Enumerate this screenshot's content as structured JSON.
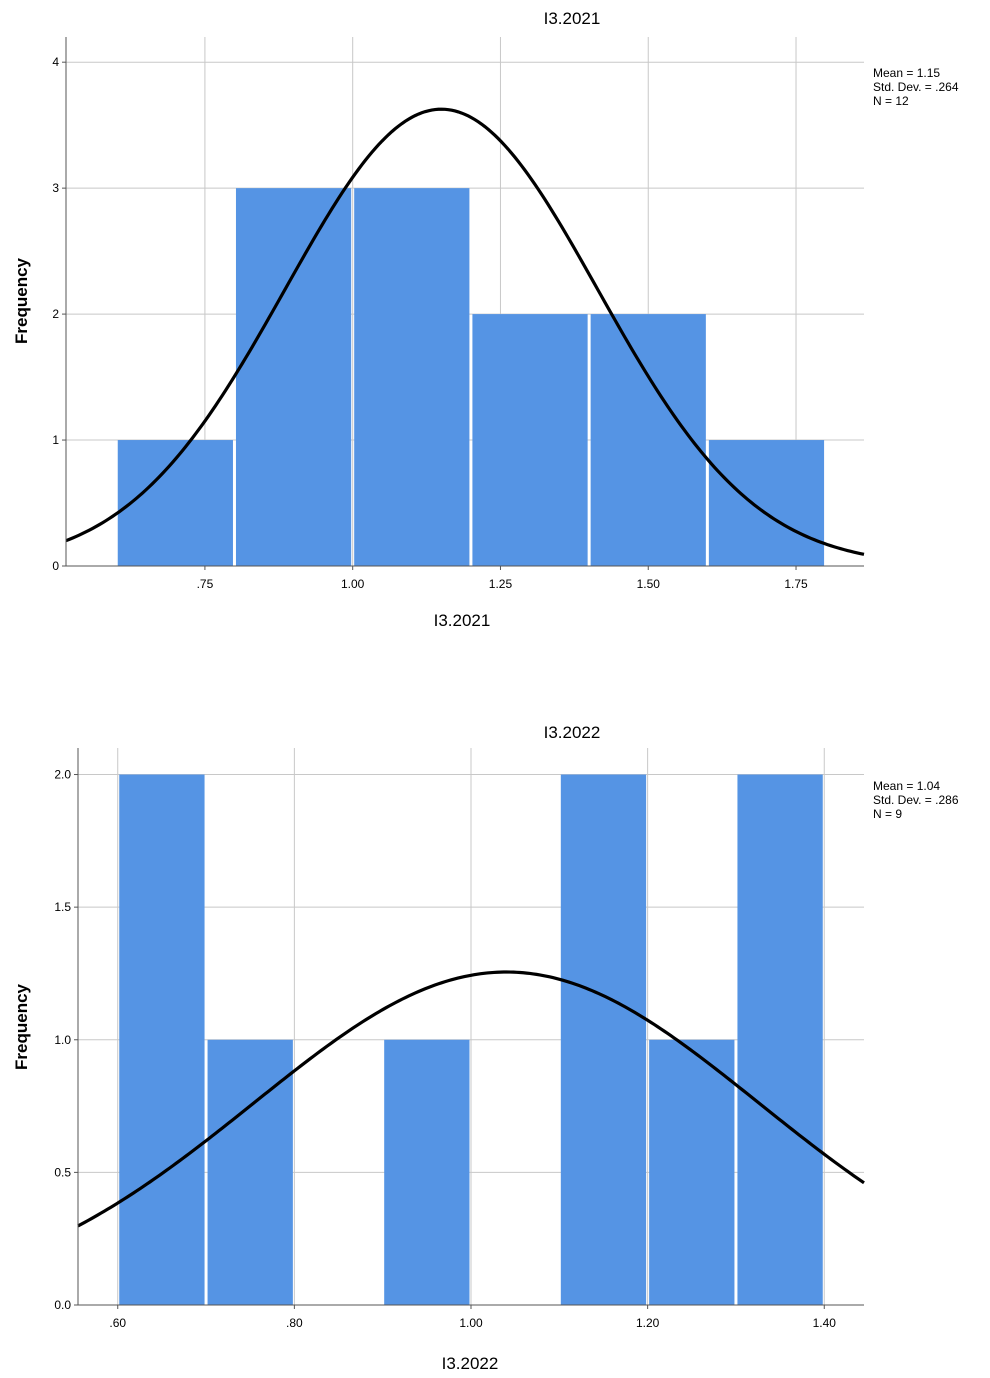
{
  "chart_data": [
    {
      "type": "bar",
      "subtype": "histogram",
      "title": "I3.2021",
      "xlabel": "I3.2021",
      "ylabel": "Frequency",
      "xlim": [
        0.515,
        1.865
      ],
      "ylim": [
        0,
        4.2
      ],
      "x_ticks": [
        0.75,
        1.0,
        1.25,
        1.5,
        1.75
      ],
      "x_tick_labels": [
        ".75",
        "1.00",
        "1.25",
        "1.50",
        "1.75"
      ],
      "y_ticks": [
        0,
        1,
        2,
        3,
        4
      ],
      "y_tick_labels": [
        "0",
        "1",
        "2",
        "3",
        "4"
      ],
      "bins": [
        {
          "start": 0.6,
          "end": 0.8,
          "count": 1
        },
        {
          "start": 0.8,
          "end": 1.0,
          "count": 3
        },
        {
          "start": 1.0,
          "end": 1.2,
          "count": 3
        },
        {
          "start": 1.2,
          "end": 1.4,
          "count": 2
        },
        {
          "start": 1.4,
          "end": 1.6,
          "count": 2
        },
        {
          "start": 1.6,
          "end": 1.8,
          "count": 1
        }
      ],
      "bin_width": 0.2,
      "normal_curve": {
        "mean": 1.15,
        "std": 0.264,
        "n": 12
      },
      "stats": [
        "Mean = 1.15",
        "Std. Dev. = .264",
        "N = 12"
      ],
      "grid": true,
      "bar_color": "#5594e4",
      "curve_color": "#000000"
    },
    {
      "type": "bar",
      "subtype": "histogram",
      "title": "I3.2022",
      "xlabel": "I3.2022",
      "ylabel": "Frequency",
      "xlim": [
        0.555,
        1.445
      ],
      "ylim": [
        0,
        2.1
      ],
      "x_ticks": [
        0.6,
        0.8,
        1.0,
        1.2,
        1.4
      ],
      "x_tick_labels": [
        ".60",
        ".80",
        "1.00",
        "1.20",
        "1.40"
      ],
      "y_ticks": [
        0,
        0.5,
        1.0,
        1.5,
        2.0
      ],
      "y_tick_labels": [
        "0.0",
        "0.5",
        "1.0",
        "1.5",
        "2.0"
      ],
      "bins": [
        {
          "start": 0.6,
          "end": 0.7,
          "count": 2
        },
        {
          "start": 0.7,
          "end": 0.8,
          "count": 1
        },
        {
          "start": 0.8,
          "end": 0.9,
          "count": 0
        },
        {
          "start": 0.9,
          "end": 1.0,
          "count": 1
        },
        {
          "start": 1.0,
          "end": 1.1,
          "count": 0
        },
        {
          "start": 1.1,
          "end": 1.2,
          "count": 2
        },
        {
          "start": 1.2,
          "end": 1.3,
          "count": 1
        },
        {
          "start": 1.3,
          "end": 1.4,
          "count": 2
        }
      ],
      "bin_width": 0.1,
      "normal_curve": {
        "mean": 1.04,
        "std": 0.286,
        "n": 9
      },
      "stats": [
        "Mean = 1.04",
        "Std. Dev. = .286",
        "N = 9"
      ],
      "grid": true,
      "bar_color": "#5594e4",
      "curve_color": "#000000"
    }
  ]
}
